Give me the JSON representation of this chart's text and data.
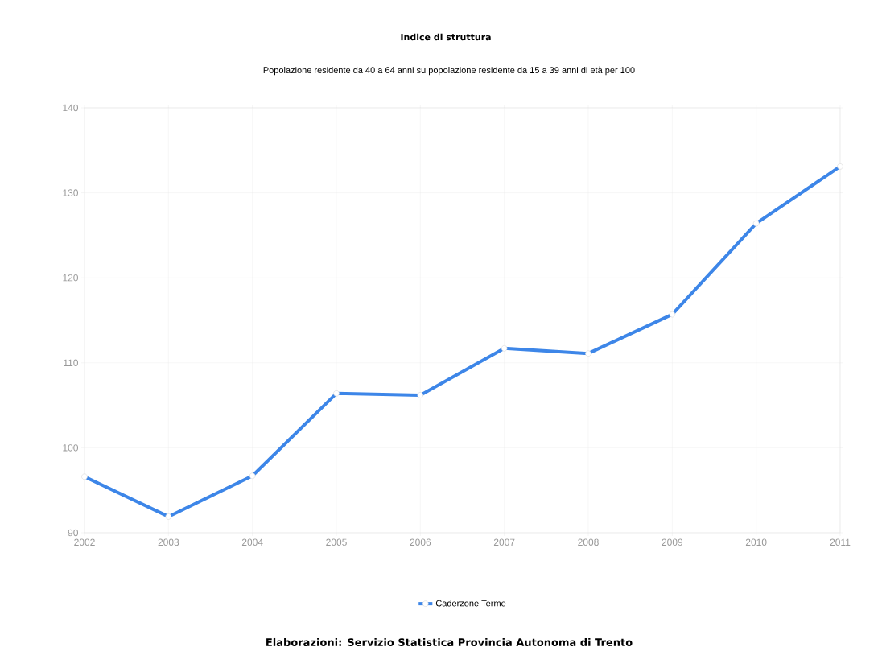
{
  "chart_data": {
    "type": "line",
    "title": "Indice di struttura",
    "subtitle": "Popolazione residente da 40 a 64 anni su popolazione residente da 15 a 39 anni di età per 100",
    "x": [
      2002,
      2003,
      2004,
      2005,
      2006,
      2007,
      2008,
      2009,
      2010,
      2011
    ],
    "series": [
      {
        "name": "Caderzone Terme",
        "color": "#3d86e8",
        "values": [
          96.6,
          91.9,
          96.7,
          106.4,
          106.2,
          111.7,
          111.1,
          115.7,
          126.4,
          133.1
        ]
      }
    ],
    "xlim": [
      2002,
      2011
    ],
    "xticks": [
      2002,
      2003,
      2004,
      2005,
      2006,
      2007,
      2008,
      2009,
      2010,
      2011
    ],
    "ylim": [
      90,
      140
    ],
    "yticks": [
      90,
      100,
      110,
      120,
      130,
      140
    ],
    "grid": true,
    "legend": "bottom",
    "marker": "circle",
    "line_style": "solid",
    "annotations": [
      "Elaborazioni: Servizio Statistica Provincia Autonoma di Trento"
    ]
  }
}
